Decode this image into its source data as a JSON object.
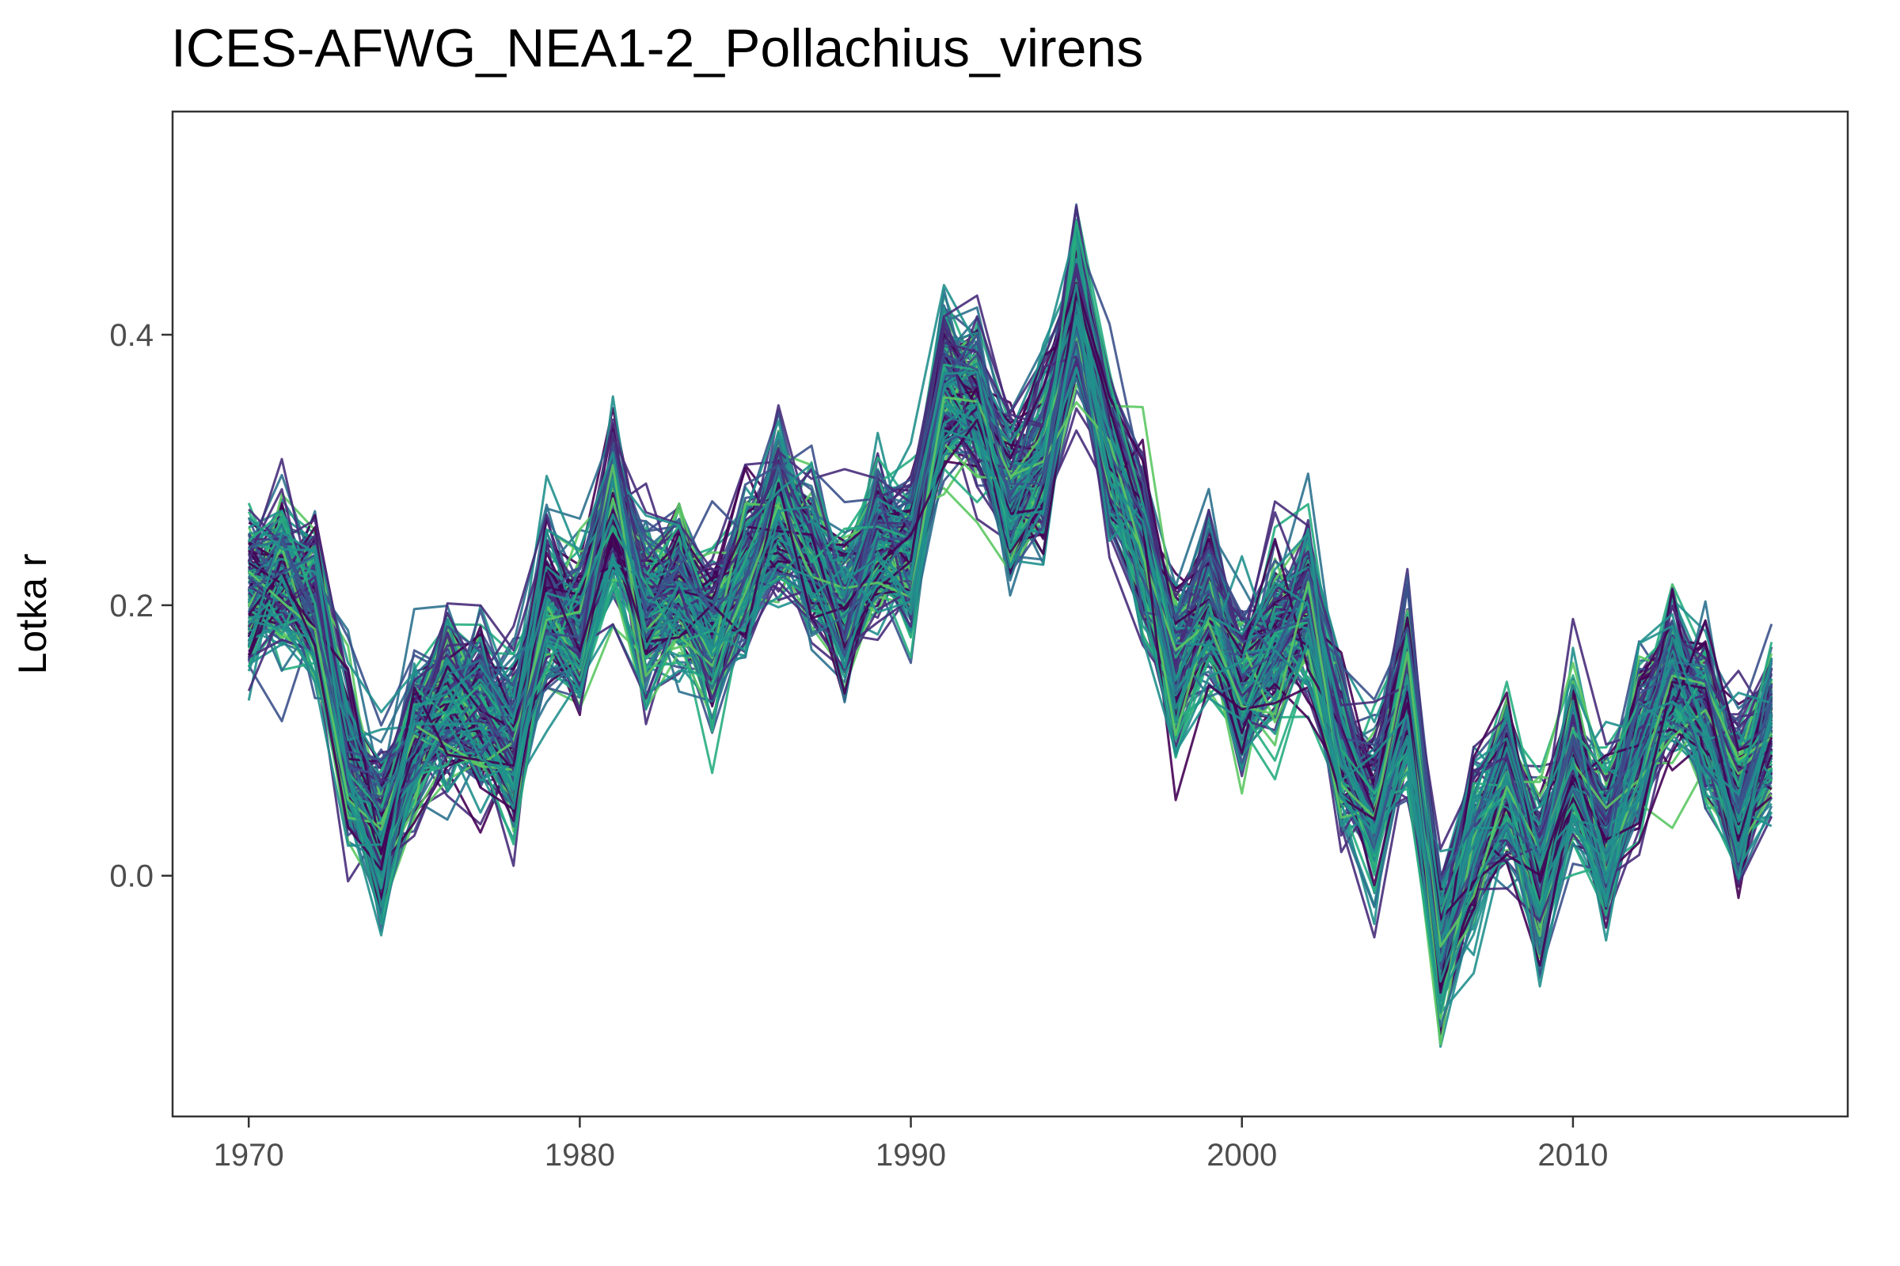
{
  "chart_data": {
    "type": "line",
    "title": "ICES-AFWG_NEA1-2_Pollachius_virens",
    "xlabel": "",
    "ylabel": "Lotka r",
    "xlim": [
      1967.7,
      2018.3
    ],
    "ylim": [
      -0.178,
      0.565
    ],
    "x_ticks": [
      1970,
      1980,
      1990,
      2000,
      2010
    ],
    "y_ticks": [
      0.0,
      0.2,
      0.4
    ],
    "y_tick_labels": [
      "0.0",
      "0.2",
      "0.4"
    ],
    "grid": false,
    "legend": "none",
    "x": [
      1970,
      1971,
      1972,
      1973,
      1974,
      1975,
      1976,
      1977,
      1978,
      1979,
      1980,
      1981,
      1982,
      1983,
      1984,
      1985,
      1986,
      1987,
      1988,
      1989,
      1990,
      1991,
      1992,
      1993,
      1994,
      1995,
      1996,
      1997,
      1998,
      1999,
      2000,
      2001,
      2002,
      2003,
      2004,
      2005,
      2006,
      2007,
      2008,
      2009,
      2010,
      2011,
      2012,
      2013,
      2014,
      2015,
      2016
    ],
    "central_values": [
      0.21,
      0.22,
      0.205,
      0.09,
      0.03,
      0.1,
      0.13,
      0.12,
      0.1,
      0.2,
      0.18,
      0.27,
      0.2,
      0.21,
      0.18,
      0.23,
      0.27,
      0.24,
      0.2,
      0.25,
      0.24,
      0.36,
      0.35,
      0.28,
      0.31,
      0.42,
      0.31,
      0.25,
      0.15,
      0.2,
      0.14,
      0.18,
      0.2,
      0.09,
      0.05,
      0.14,
      -0.05,
      0.02,
      0.07,
      0.0,
      0.08,
      0.03,
      0.1,
      0.15,
      0.12,
      0.06,
      0.11
    ],
    "series_count": 200,
    "series_spread": 0.045,
    "colors": [
      "#440154",
      "#472c7a",
      "#3b518b",
      "#2c718e",
      "#21908d",
      "#27ad81",
      "#5cc863"
    ],
    "axis_color": "#333333",
    "tick_label_color": "#4d4d4d"
  }
}
